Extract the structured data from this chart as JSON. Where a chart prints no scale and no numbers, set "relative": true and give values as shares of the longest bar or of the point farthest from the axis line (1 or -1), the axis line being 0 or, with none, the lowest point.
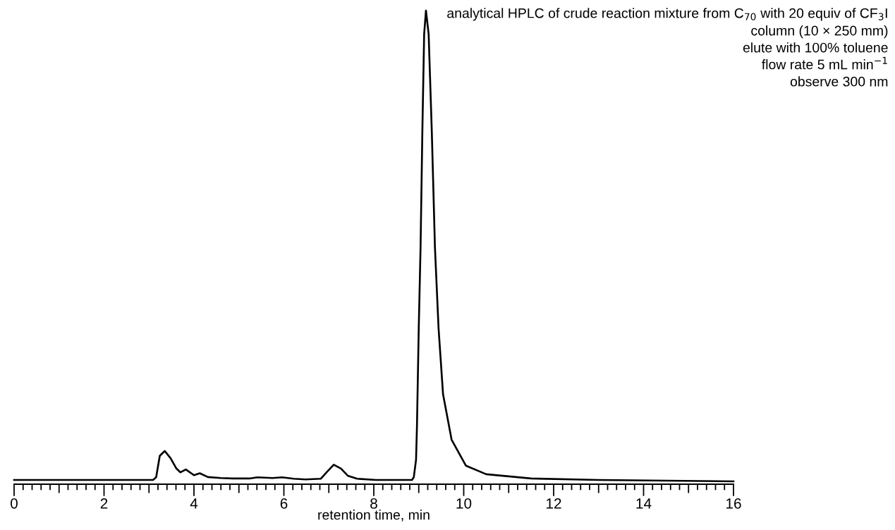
{
  "chart_data": {
    "type": "line",
    "relative": true,
    "xlabel": "retention time, min",
    "annotations": [
      "analytical HPLC of crude reaction mixture from C$_{70}$ with 20 equiv of CF$_{3}$I",
      "column (10 × 250 mm)",
      "elute with 100% toluene",
      "flow rate 5 mL min$^{−1}$",
      "observe 300 nm"
    ],
    "xlim": [
      0,
      16
    ],
    "xticks": [
      0,
      {
        "value": 0.2,
        "label": null
      },
      {
        "value": 0.4,
        "label": null
      },
      {
        "value": 0.6,
        "label": null
      },
      {
        "value": 0.8,
        "label": null
      },
      {
        "value": 1,
        "label": null
      },
      {
        "value": 1.2,
        "label": null
      },
      {
        "value": 1.4,
        "label": null
      },
      {
        "value": 1.6,
        "label": null
      },
      {
        "value": 1.8,
        "label": null
      },
      2,
      {
        "value": 2.2,
        "label": null
      },
      {
        "value": 2.4,
        "label": null
      },
      {
        "value": 2.6,
        "label": null
      },
      {
        "value": 2.8,
        "label": null
      },
      {
        "value": 3,
        "label": null
      },
      {
        "value": 3.2,
        "label": null
      },
      {
        "value": 3.4,
        "label": null
      },
      {
        "value": 3.6,
        "label": null
      },
      {
        "value": 3.8,
        "label": null
      },
      4,
      {
        "value": 4.2,
        "label": null
      },
      {
        "value": 4.4,
        "label": null
      },
      {
        "value": 4.6,
        "label": null
      },
      {
        "value": 4.8,
        "label": null
      },
      {
        "value": 5,
        "label": null
      },
      {
        "value": 5.2,
        "label": null
      },
      {
        "value": 5.4,
        "label": null
      },
      {
        "value": 5.6,
        "label": null
      },
      {
        "value": 5.8,
        "label": null
      },
      6,
      {
        "value": 6.2,
        "label": null
      },
      {
        "value": 6.4,
        "label": null
      },
      {
        "value": 6.6,
        "label": null
      },
      {
        "value": 6.8,
        "label": null
      },
      {
        "value": 7,
        "label": null
      },
      {
        "value": 7.2,
        "label": null
      },
      {
        "value": 7.4,
        "label": null
      },
      {
        "value": 7.6,
        "label": null
      },
      {
        "value": 7.8,
        "label": null
      },
      8,
      {
        "value": 8.2,
        "label": null
      },
      {
        "value": 8.4,
        "label": null
      },
      {
        "value": 8.6,
        "label": null
      },
      {
        "value": 8.8,
        "label": null
      },
      {
        "value": 9,
        "label": null
      },
      {
        "value": 9.2,
        "label": null
      },
      {
        "value": 9.4,
        "label": null
      },
      {
        "value": 9.6,
        "label": null
      },
      {
        "value": 9.8,
        "label": null
      },
      10,
      {
        "value": 10.2,
        "label": null
      },
      {
        "value": 10.4,
        "label": null
      },
      {
        "value": 10.6,
        "label": null
      },
      {
        "value": 10.8,
        "label": null
      },
      {
        "value": 11,
        "label": null
      },
      {
        "value": 11.2,
        "label": null
      },
      {
        "value": 11.4,
        "label": null
      },
      {
        "value": 11.6,
        "label": null
      },
      {
        "value": 11.8,
        "label": null
      },
      12,
      {
        "value": 12.2,
        "label": null
      },
      {
        "value": 12.4,
        "label": null
      },
      {
        "value": 12.6,
        "label": null
      },
      {
        "value": 12.8,
        "label": null
      },
      {
        "value": 13,
        "label": null
      },
      {
        "value": 13.2,
        "label": null
      },
      {
        "value": 13.4,
        "label": null
      },
      {
        "value": 13.6,
        "label": null
      },
      {
        "value": 13.8,
        "label": null
      },
      14,
      {
        "value": 14.2,
        "label": null
      },
      {
        "value": 14.4,
        "label": null
      },
      {
        "value": 14.6,
        "label": null
      },
      {
        "value": 14.8,
        "label": null
      },
      {
        "value": 15,
        "label": null
      },
      {
        "value": 15.2,
        "label": null
      },
      {
        "value": 15.4,
        "label": null
      },
      {
        "value": 15.6,
        "label": null
      },
      {
        "value": 15.8,
        "label": null
      },
      16
    ],
    "grid": false,
    "legend": false,
    "marker": "none",
    "line_style": "solid",
    "series": [
      {
        "color": "#000000",
        "x": [
          0,
          1,
          2,
          3.09,
          3.16,
          3.24,
          3.35,
          3.48,
          3.61,
          3.7,
          3.82,
          4.0,
          4.13,
          4.31,
          4.6,
          4.86,
          5.23,
          5.41,
          5.75,
          5.96,
          6.22,
          6.48,
          6.82,
          6.95,
          7.11,
          7.27,
          7.42,
          7.63,
          8.05,
          8.85,
          8.89,
          8.94,
          8.96,
          9.0,
          9.04,
          9.08,
          9.12,
          9.16,
          9.22,
          9.29,
          9.36,
          9.44,
          9.54,
          9.73,
          10.05,
          10.5,
          11.5,
          13,
          16
        ],
        "values": [
          0.009,
          0.009,
          0.009,
          0.009,
          0.015,
          0.06,
          0.07,
          0.055,
          0.033,
          0.025,
          0.031,
          0.019,
          0.023,
          0.015,
          0.013,
          0.012,
          0.012,
          0.0145,
          0.013,
          0.0145,
          0.0115,
          0.01,
          0.0115,
          0.025,
          0.041,
          0.033,
          0.018,
          0.0115,
          0.009,
          0.009,
          0.015,
          0.052,
          0.122,
          0.33,
          0.5,
          0.745,
          0.95,
          1.0,
          0.95,
          0.745,
          0.5,
          0.33,
          0.19,
          0.094,
          0.039,
          0.021,
          0.012,
          0.009,
          0.006
        ]
      }
    ]
  }
}
